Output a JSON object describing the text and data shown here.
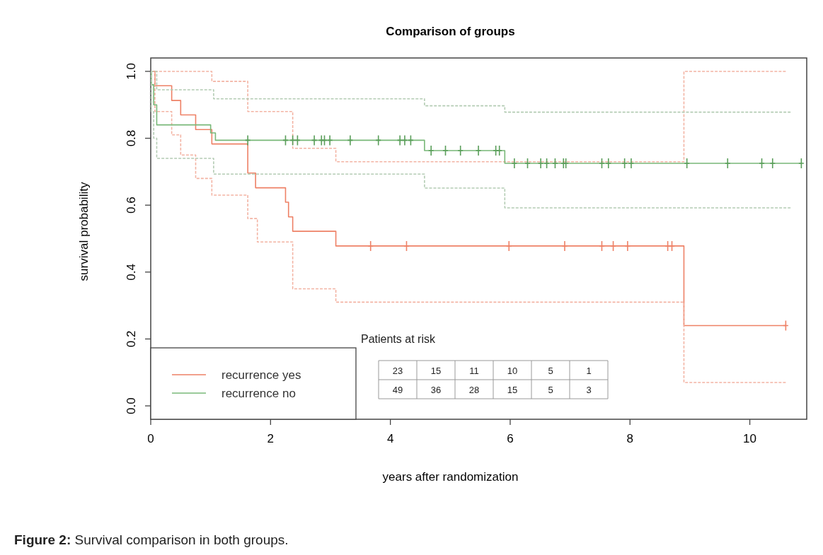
{
  "chart_data": {
    "type": "step",
    "title": "Comparison of groups",
    "xlabel": "years after randomization",
    "ylabel": "survival probability",
    "xlim": [
      0,
      10.95
    ],
    "ylim": [
      -0.04,
      1.04
    ],
    "xticks": [
      0,
      2,
      4,
      6,
      8,
      10
    ],
    "yticks": [
      {
        "value": 0,
        "label": "0.0"
      },
      {
        "value": 0.2,
        "label": "0.2"
      },
      {
        "value": 0.4,
        "label": "0.4"
      },
      {
        "value": 0.6,
        "label": "0.6"
      },
      {
        "value": 0.8,
        "label": "0.8"
      },
      {
        "value": 1,
        "label": "1.0"
      }
    ],
    "grid": false,
    "legend": "bottom left",
    "line_style": "solid",
    "series": [
      {
        "name": "recurrence yes",
        "color": "#ee8166",
        "x": [
          0,
          0.07,
          0.35,
          0.5,
          0.75,
          1.02,
          1.62,
          1.75,
          2.25,
          2.3,
          2.37,
          3.09,
          8.9,
          10.6
        ],
        "values": [
          1,
          0.957,
          0.913,
          0.87,
          0.826,
          0.783,
          0.696,
          0.652,
          0.609,
          0.565,
          0.522,
          0.478,
          0.24,
          0.24
        ]
      },
      {
        "color": "#f3b4a4",
        "line_style": "dashed",
        "x": [
          0,
          1.02,
          1.62,
          2.25,
          2.37,
          3.09,
          8.9,
          10.6
        ],
        "values": [
          1,
          0.97,
          0.88,
          0.88,
          0.77,
          0.73,
          1,
          1
        ]
      },
      {
        "color": "#f3b4a4",
        "line_style": "dashed",
        "x": [
          0,
          0.07,
          0.35,
          0.5,
          0.75,
          1.02,
          1.62,
          1.78,
          2.37,
          3.09,
          8.9,
          10.6
        ],
        "values": [
          1,
          0.88,
          0.81,
          0.75,
          0.68,
          0.63,
          0.56,
          0.49,
          0.35,
          0.31,
          0.07,
          0.07
        ]
      },
      {
        "name": "recurrence no",
        "color": "#78b878",
        "x": [
          0,
          0.01,
          0.05,
          0.1,
          1.0,
          1.08,
          4.57,
          5.91,
          10.86
        ],
        "values": [
          1,
          0.96,
          0.9,
          0.84,
          0.816,
          0.794,
          0.763,
          0.725,
          0.725
        ]
      },
      {
        "color": "#b4ccb4",
        "line_style": "dashed",
        "x": [
          0,
          0.1,
          1.05,
          4.57,
          5.91,
          10.68
        ],
        "values": [
          1,
          0.945,
          0.918,
          0.897,
          0.878,
          0.878
        ]
      },
      {
        "color": "#b4ccb4",
        "line_style": "dashed",
        "x": [
          0,
          0.01,
          0.05,
          0.1,
          1.05,
          4.57,
          5.91,
          10.68
        ],
        "values": [
          1,
          0.88,
          0.8,
          0.74,
          0.693,
          0.651,
          0.592,
          0.592
        ]
      },
      {
        "type": "scatter",
        "marker": "cross",
        "color": "#ee8166",
        "x": [
          3.67,
          4.27,
          5.98,
          6.91,
          7.53,
          7.72,
          7.96,
          8.63,
          8.7,
          10.6
        ],
        "values": [
          0.478,
          0.478,
          0.478,
          0.478,
          0.478,
          0.478,
          0.478,
          0.478,
          0.478,
          0.24
        ]
      },
      {
        "type": "scatter",
        "marker": "cross",
        "color": "#5a9e5a",
        "x": [
          1.62,
          2.25,
          2.37,
          2.45,
          2.73,
          2.85,
          2.9,
          2.99,
          3.33,
          3.8,
          4.16,
          4.24,
          4.34,
          4.68,
          4.92,
          5.17,
          5.47,
          5.76,
          5.82,
          6.07,
          6.29,
          6.51,
          6.61,
          6.75,
          6.89,
          6.93,
          7.53,
          7.64,
          7.91,
          8.02,
          8.95,
          9.63,
          10.2,
          10.38,
          10.86
        ],
        "values": [
          0.794,
          0.794,
          0.794,
          0.794,
          0.794,
          0.794,
          0.794,
          0.794,
          0.794,
          0.794,
          0.794,
          0.794,
          0.794,
          0.763,
          0.763,
          0.763,
          0.763,
          0.763,
          0.763,
          0.725,
          0.725,
          0.725,
          0.725,
          0.725,
          0.725,
          0.725,
          0.725,
          0.725,
          0.725,
          0.725,
          0.725,
          0.725,
          0.725,
          0.725,
          0.725
        ]
      }
    ],
    "annotations": [
      "Patients at risk",
      "23",
      "15",
      "11",
      "10",
      "5",
      "1",
      "49",
      "36",
      "28",
      "15",
      "5",
      "3",
      "Figure 2: Survival comparison in both groups."
    ]
  }
}
